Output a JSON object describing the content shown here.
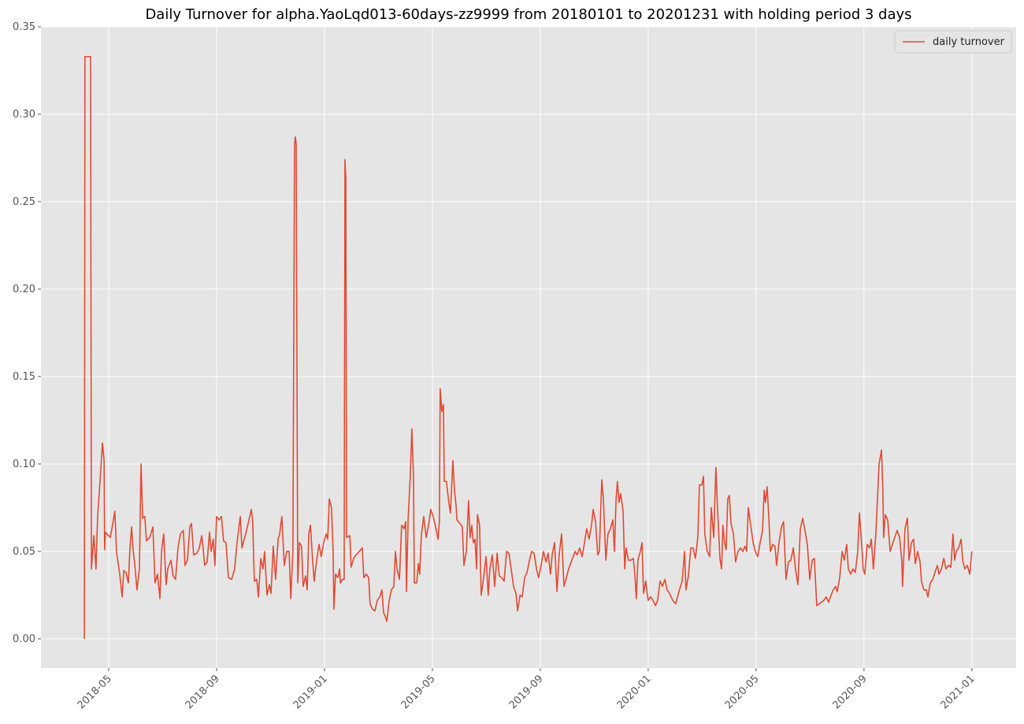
{
  "chart_data": {
    "type": "line",
    "title": "Daily Turnover for alpha.YaoLqd013-60days-zz9999 from 20180101 to 20201231 with holding period 3 days",
    "x": [
      3.1,
      3.12,
      3.33,
      3.36,
      3.45,
      3.53,
      3.59,
      3.68,
      3.77,
      3.83,
      3.85,
      3.88,
      4.06,
      4.12,
      4.23,
      4.29,
      4.41,
      4.5,
      4.56,
      4.64,
      4.73,
      4.79,
      4.85,
      4.91,
      4.96,
      5.05,
      5.14,
      5.2,
      5.26,
      5.34,
      5.4,
      5.52,
      5.64,
      5.72,
      5.81,
      5.9,
      5.96,
      6.04,
      6.13,
      6.19,
      6.31,
      6.39,
      6.48,
      6.57,
      6.66,
      6.77,
      6.83,
      6.92,
      7.01,
      7.07,
      7.15,
      7.27,
      7.36,
      7.45,
      7.5,
      7.56,
      7.65,
      7.74,
      7.8,
      7.88,
      7.94,
      8.0,
      8.09,
      8.18,
      8.26,
      8.35,
      8.44,
      8.56,
      8.67,
      8.76,
      8.88,
      8.94,
      9.08,
      9.2,
      9.29,
      9.34,
      9.4,
      9.49,
      9.55,
      9.64,
      9.72,
      9.78,
      9.87,
      9.96,
      10.02,
      10.1,
      10.19,
      10.28,
      10.34,
      10.42,
      10.51,
      10.6,
      10.69,
      10.75,
      10.83,
      10.89,
      10.92,
      10.95,
      11.01,
      11.07,
      11.15,
      11.21,
      11.3,
      11.36,
      11.42,
      11.48,
      11.56,
      11.62,
      11.71,
      11.8,
      11.88,
      11.97,
      12.06,
      12.12,
      12.18,
      12.26,
      12.32,
      12.35,
      12.41,
      12.5,
      12.56,
      12.59,
      12.67,
      12.73,
      12.76,
      12.79,
      12.82,
      12.94,
      12.99,
      13.08,
      13.17,
      13.29,
      13.4,
      13.46,
      13.55,
      13.64,
      13.69,
      13.78,
      13.87,
      13.96,
      14.05,
      14.13,
      14.19,
      14.25,
      14.31,
      14.4,
      14.48,
      14.57,
      14.63,
      14.69,
      14.78,
      14.86,
      14.95,
      15.01,
      15.04,
      15.1,
      15.18,
      15.24,
      15.3,
      15.33,
      15.42,
      15.48,
      15.53,
      15.59,
      15.68,
      15.77,
      15.86,
      15.94,
      16.03,
      16.12,
      16.21,
      16.26,
      16.29,
      16.35,
      16.41,
      16.44,
      16.52,
      16.61,
      16.67,
      16.76,
      16.82,
      16.88,
      16.91,
      17.02,
      17.11,
      17.17,
      17.26,
      17.34,
      17.4,
      17.46,
      17.52,
      17.58,
      17.64,
      17.67,
      17.75,
      17.81,
      17.9,
      17.99,
      18.07,
      18.13,
      18.22,
      18.31,
      18.4,
      18.48,
      18.57,
      18.66,
      18.75,
      18.84,
      18.92,
      19.01,
      19.1,
      19.16,
      19.25,
      19.33,
      19.42,
      19.51,
      19.6,
      19.68,
      19.77,
      19.86,
      19.94,
      20.03,
      20.12,
      20.21,
      20.29,
      20.38,
      20.44,
      20.53,
      20.62,
      20.7,
      20.79,
      20.88,
      20.97,
      21.05,
      21.17,
      21.29,
      21.37,
      21.46,
      21.55,
      21.64,
      21.72,
      21.81,
      21.9,
      21.96,
      22.05,
      22.13,
      22.19,
      22.28,
      22.34,
      22.43,
      22.51,
      22.6,
      22.69,
      22.75,
      22.81,
      22.86,
      22.92,
      22.98,
      23.07,
      23.13,
      23.18,
      23.27,
      23.36,
      23.45,
      23.51,
      23.56,
      23.62,
      23.71,
      23.77,
      23.83,
      23.91,
      24.0,
      24.09,
      24.18,
      24.27,
      24.35,
      24.44,
      24.53,
      24.62,
      24.7,
      24.79,
      24.91,
      25.02,
      25.14,
      25.26,
      25.35,
      25.4,
      25.49,
      25.58,
      25.67,
      25.75,
      25.84,
      25.9,
      25.99,
      26.05,
      26.1,
      26.19,
      26.28,
      26.34,
      26.43,
      26.51,
      26.57,
      26.66,
      26.72,
      26.77,
      26.83,
      26.89,
      26.95,
      27.01,
      27.07,
      27.16,
      27.24,
      27.33,
      27.42,
      27.51,
      27.59,
      27.65,
      27.71,
      27.8,
      27.89,
      27.97,
      28.06,
      28.15,
      28.24,
      28.3,
      28.35,
      28.41,
      28.47,
      28.53,
      28.62,
      28.7,
      28.76,
      28.85,
      28.94,
      29.02,
      29.11,
      29.2,
      29.29,
      29.38,
      29.46,
      29.55,
      29.64,
      29.73,
      29.81,
      29.9,
      29.99,
      30.08,
      30.16,
      30.25,
      30.34,
      30.43,
      30.51,
      30.6,
      30.69,
      30.78,
      30.86,
      30.95,
      31.01,
      31.1,
      31.19,
      31.27,
      31.36,
      31.42,
      31.51,
      31.59,
      31.68,
      31.77,
      31.83,
      31.89,
      31.97,
      32.03,
      32.12,
      32.21,
      32.27,
      32.35,
      32.44,
      32.5,
      32.56,
      32.65,
      32.7,
      32.73,
      32.79,
      32.88,
      32.97,
      33.05,
      33.14,
      33.23,
      33.32,
      33.4,
      33.43,
      33.52,
      33.61,
      33.67,
      33.76,
      33.84,
      33.9,
      33.99,
      34.08,
      34.13,
      34.22,
      34.31,
      34.37,
      34.46,
      34.55,
      34.63,
      34.72,
      34.78,
      34.87,
      34.96,
      35.04,
      35.13,
      35.22,
      35.3,
      35.36,
      35.42,
      35.51,
      35.6,
      35.66,
      35.74,
      35.83,
      35.92,
      36.0
    ],
    "series": [
      {
        "name": "daily turnover",
        "color": "#e24a33",
        "values": [
          0,
          0.333,
          0.333,
          0.04,
          0.059,
          0.04,
          0.07,
          0.09,
          0.112,
          0.102,
          0.051,
          0.061,
          0.058,
          0.063,
          0.073,
          0.05,
          0.037,
          0.024,
          0.039,
          0.038,
          0.032,
          0.052,
          0.064,
          0.05,
          0.044,
          0.028,
          0.04,
          0.1,
          0.069,
          0.07,
          0.056,
          0.058,
          0.064,
          0.032,
          0.037,
          0.023,
          0.05,
          0.06,
          0.031,
          0.04,
          0.045,
          0.036,
          0.034,
          0.052,
          0.06,
          0.062,
          0.042,
          0.045,
          0.064,
          0.066,
          0.048,
          0.049,
          0.052,
          0.059,
          0.052,
          0.042,
          0.044,
          0.061,
          0.05,
          0.057,
          0.042,
          0.07,
          0.068,
          0.07,
          0.056,
          0.055,
          0.035,
          0.034,
          0.04,
          0.055,
          0.07,
          0.052,
          0.06,
          0.068,
          0.074,
          0.067,
          0.033,
          0.034,
          0.024,
          0.046,
          0.04,
          0.05,
          0.025,
          0.031,
          0.026,
          0.053,
          0.034,
          0.057,
          0.06,
          0.07,
          0.042,
          0.05,
          0.05,
          0.023,
          0.05,
          0.283,
          0.287,
          0.283,
          0.032,
          0.055,
          0.053,
          0.03,
          0.036,
          0.028,
          0.06,
          0.065,
          0.045,
          0.033,
          0.045,
          0.054,
          0.047,
          0.055,
          0.06,
          0.057,
          0.08,
          0.075,
          0.05,
          0.017,
          0.037,
          0.035,
          0.04,
          0.032,
          0.034,
          0.034,
          0.274,
          0.264,
          0.058,
          0.059,
          0.041,
          0.046,
          0.048,
          0.05,
          0.052,
          0.035,
          0.037,
          0.035,
          0.02,
          0.017,
          0.016,
          0.022,
          0.024,
          0.028,
          0.015,
          0.013,
          0.01,
          0.022,
          0.028,
          0.03,
          0.05,
          0.04,
          0.034,
          0.065,
          0.063,
          0.067,
          0.027,
          0.068,
          0.093,
          0.12,
          0.093,
          0.032,
          0.032,
          0.043,
          0.037,
          0.059,
          0.07,
          0.058,
          0.065,
          0.074,
          0.07,
          0.064,
          0.057,
          0.067,
          0.143,
          0.13,
          0.134,
          0.09,
          0.09,
          0.078,
          0.072,
          0.102,
          0.085,
          0.076,
          0.068,
          0.066,
          0.064,
          0.042,
          0.05,
          0.079,
          0.058,
          0.065,
          0.055,
          0.057,
          0.04,
          0.071,
          0.065,
          0.025,
          0.035,
          0.047,
          0.025,
          0.04,
          0.048,
          0.03,
          0.049,
          0.036,
          0.035,
          0.033,
          0.05,
          0.049,
          0.04,
          0.03,
          0.026,
          0.016,
          0.025,
          0.024,
          0.035,
          0.038,
          0.045,
          0.05,
          0.049,
          0.04,
          0.035,
          0.042,
          0.05,
          0.044,
          0.049,
          0.037,
          0.048,
          0.055,
          0.027,
          0.048,
          0.06,
          0.03,
          0.035,
          0.04,
          0.045,
          0.05,
          0.048,
          0.052,
          0.047,
          0.055,
          0.063,
          0.057,
          0.065,
          0.074,
          0.067,
          0.048,
          0.05,
          0.091,
          0.08,
          0.045,
          0.06,
          0.063,
          0.068,
          0.05,
          0.08,
          0.09,
          0.078,
          0.083,
          0.073,
          0.04,
          0.052,
          0.045,
          0.045,
          0.046,
          0.036,
          0.023,
          0.045,
          0.05,
          0.055,
          0.026,
          0.033,
          0.022,
          0.024,
          0.022,
          0.019,
          0.022,
          0.033,
          0.03,
          0.034,
          0.028,
          0.026,
          0.022,
          0.02,
          0.027,
          0.033,
          0.05,
          0.028,
          0.036,
          0.052,
          0.052,
          0.046,
          0.058,
          0.088,
          0.088,
          0.093,
          0.06,
          0.05,
          0.047,
          0.075,
          0.058,
          0.098,
          0.075,
          0.046,
          0.04,
          0.065,
          0.055,
          0.051,
          0.08,
          0.082,
          0.066,
          0.06,
          0.044,
          0.05,
          0.052,
          0.05,
          0.053,
          0.05,
          0.075,
          0.065,
          0.055,
          0.05,
          0.047,
          0.055,
          0.062,
          0.085,
          0.078,
          0.087,
          0.07,
          0.05,
          0.054,
          0.053,
          0.042,
          0.055,
          0.064,
          0.067,
          0.034,
          0.044,
          0.045,
          0.052,
          0.04,
          0.031,
          0.063,
          0.069,
          0.062,
          0.054,
          0.034,
          0.045,
          0.046,
          0.019,
          0.02,
          0.021,
          0.022,
          0.024,
          0.021,
          0.025,
          0.028,
          0.03,
          0.027,
          0.035,
          0.05,
          0.045,
          0.054,
          0.04,
          0.037,
          0.04,
          0.038,
          0.05,
          0.072,
          0.06,
          0.04,
          0.037,
          0.054,
          0.052,
          0.057,
          0.04,
          0.06,
          0.08,
          0.1,
          0.108,
          0.085,
          0.058,
          0.071,
          0.068,
          0.05,
          0.054,
          0.058,
          0.062,
          0.058,
          0.045,
          0.03,
          0.063,
          0.069,
          0.045,
          0.055,
          0.057,
          0.043,
          0.05,
          0.044,
          0.033,
          0.028,
          0.028,
          0.024,
          0.032,
          0.034,
          0.038,
          0.042,
          0.037,
          0.04,
          0.046,
          0.04,
          0.042,
          0.041,
          0.06,
          0.045,
          0.05,
          0.052,
          0.057,
          0.045,
          0.04,
          0.042,
          0.037,
          0.05
        ]
      }
    ],
    "xlim": [
      1.49,
      37.64
    ],
    "xticks": [
      {
        "value": 4,
        "label": "2018-05"
      },
      {
        "value": 8,
        "label": "2018-09"
      },
      {
        "value": 12,
        "label": "2019-01"
      },
      {
        "value": 16,
        "label": "2019-05"
      },
      {
        "value": 20,
        "label": "2019-09"
      },
      {
        "value": 24,
        "label": "2020-01"
      },
      {
        "value": 28,
        "label": "2020-05"
      },
      {
        "value": 32,
        "label": "2020-09"
      },
      {
        "value": 36,
        "label": "2021-01"
      }
    ],
    "ylim": [
      -0.0167,
      0.35
    ],
    "yticks": [
      {
        "value": 0,
        "label": "0.00"
      },
      {
        "value": 0.05,
        "label": "0.05"
      },
      {
        "value": 0.1,
        "label": "0.10"
      },
      {
        "value": 0.15,
        "label": "0.15"
      },
      {
        "value": 0.2,
        "label": "0.20"
      },
      {
        "value": 0.25,
        "label": "0.25"
      },
      {
        "value": 0.3,
        "label": "0.30"
      },
      {
        "value": 0.35,
        "label": "0.35"
      }
    ],
    "grid": true,
    "legend": "upper right"
  }
}
